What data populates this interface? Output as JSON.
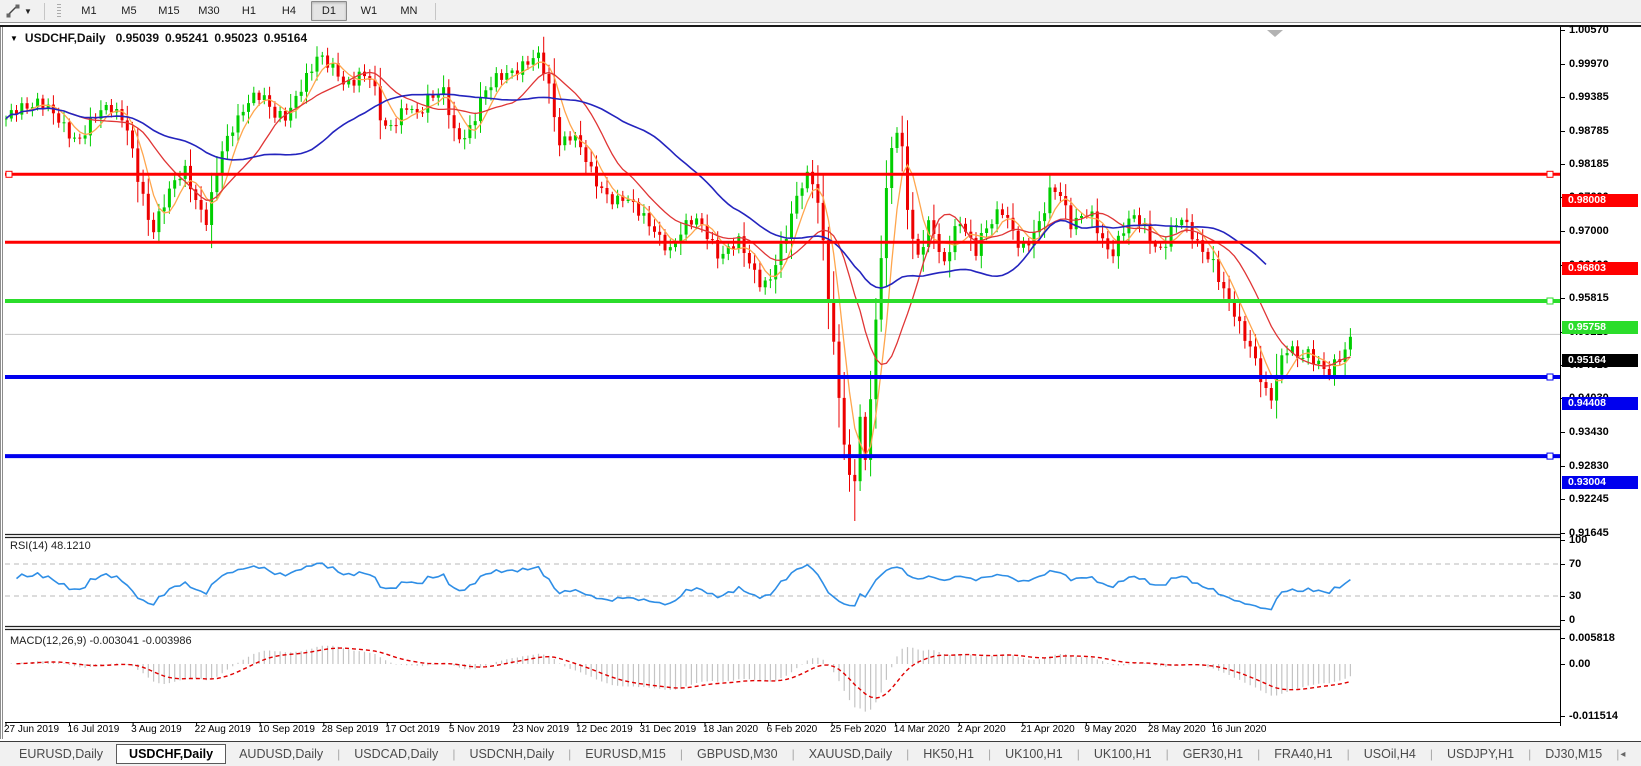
{
  "toolbar": {
    "timeframes": [
      "M1",
      "M5",
      "M15",
      "M30",
      "H1",
      "H4",
      "D1",
      "W1",
      "MN"
    ],
    "active_timeframe": "D1"
  },
  "chart": {
    "title": {
      "symbol": "USDCHF,Daily",
      "open": "0.95039",
      "high": "0.95241",
      "low": "0.95023",
      "close": "0.95164"
    },
    "indicators": {
      "rsi_label": "RSI(14) 48.1210",
      "macd_label": "MACD(12,26,9) -0.003041 -0.003986",
      "rsi_axis": [
        "100",
        "70",
        "30",
        "0"
      ],
      "macd_axis": [
        "0.005818",
        "0.00",
        "-0.011514"
      ]
    },
    "colors": {
      "candle_up": "#00CE00",
      "candle_down": "#ED0000",
      "ma_fast": "#FFA64D",
      "ma_medium": "#E03636",
      "ma_slow": "#2424BE",
      "rsi_line": "#2E8EE6",
      "macd_hist": "#C4C4C4",
      "macd_signal": "#E00000",
      "bid_line": "#C6C6C6",
      "level_red": "#FF0000",
      "level_green": "#2BDD2B",
      "level_blue": "#0000EE"
    }
  },
  "chart_data": {
    "type": "candlestick",
    "symbol": "USDCHF",
    "timeframe": "Daily",
    "ohlc_current": {
      "open": 0.95039,
      "high": 0.95241,
      "low": 0.95023,
      "close": 0.95164
    },
    "current_price": 0.95164,
    "price_axis_ticks": [
      "1.00570",
      "0.99970",
      "0.99385",
      "0.98785",
      "0.98185",
      "0.97600",
      "0.97000",
      "0.96400",
      "0.95815",
      "0.95215",
      "0.94615",
      "0.94030",
      "0.93430",
      "0.92830",
      "0.92245",
      "0.91645"
    ],
    "ylim": [
      0.91645,
      1.0057
    ],
    "horizontal_lines": [
      {
        "price": 0.98008,
        "label": "0.98008",
        "color": "#FF0000",
        "width": 3,
        "handles": [
          "left",
          "right"
        ]
      },
      {
        "price": 0.96803,
        "label": "0.96803",
        "color": "#FF0000",
        "width": 3,
        "handles": []
      },
      {
        "price": 0.95758,
        "label": "0.95758",
        "color": "#2BDD2B",
        "width": 4,
        "handles": [
          "right"
        ]
      },
      {
        "price": 0.94408,
        "label": "0.94408",
        "color": "#0000EE",
        "width": 4,
        "handles": [
          "right"
        ]
      },
      {
        "price": 0.93004,
        "label": "0.93004",
        "color": "#0000EE",
        "width": 4,
        "handles": [
          "right"
        ]
      }
    ],
    "bars": {
      "count": 256,
      "first_x": 6,
      "spacing": 5.272
    },
    "close_keyframes": [
      [
        6,
        0.99
      ],
      [
        40,
        0.9935
      ],
      [
        62,
        0.9886
      ],
      [
        78,
        0.9862
      ],
      [
        95,
        0.99
      ],
      [
        110,
        0.9926
      ],
      [
        125,
        0.9898
      ],
      [
        138,
        0.979
      ],
      [
        152,
        0.97
      ],
      [
        162,
        0.9745
      ],
      [
        175,
        0.9785
      ],
      [
        186,
        0.9808
      ],
      [
        197,
        0.9752
      ],
      [
        207,
        0.9716
      ],
      [
        220,
        0.983
      ],
      [
        233,
        0.989
      ],
      [
        248,
        0.9928
      ],
      [
        262,
        0.994
      ],
      [
        275,
        0.9912
      ],
      [
        288,
        0.9902
      ],
      [
        302,
        0.9955
      ],
      [
        318,
        1.0018
      ],
      [
        330,
        0.9992
      ],
      [
        345,
        0.9958
      ],
      [
        360,
        0.9982
      ],
      [
        372,
        0.9968
      ],
      [
        383,
        0.988
      ],
      [
        393,
        0.9893
      ],
      [
        406,
        0.9922
      ],
      [
        418,
        0.99
      ],
      [
        430,
        0.9945
      ],
      [
        444,
        0.995
      ],
      [
        456,
        0.9856
      ],
      [
        468,
        0.9874
      ],
      [
        482,
        0.9942
      ],
      [
        497,
        0.9968
      ],
      [
        512,
        0.9986
      ],
      [
        527,
        0.9998
      ],
      [
        540,
        1.0008
      ],
      [
        550,
        0.9952
      ],
      [
        560,
        0.9855
      ],
      [
        572,
        0.9868
      ],
      [
        583,
        0.984
      ],
      [
        594,
        0.98
      ],
      [
        605,
        0.9765
      ],
      [
        615,
        0.9745
      ],
      [
        625,
        0.9762
      ],
      [
        636,
        0.9748
      ],
      [
        648,
        0.9712
      ],
      [
        660,
        0.9682
      ],
      [
        670,
        0.9668
      ],
      [
        680,
        0.97
      ],
      [
        690,
        0.9716
      ],
      [
        700,
        0.9712
      ],
      [
        710,
        0.9688
      ],
      [
        720,
        0.9655
      ],
      [
        730,
        0.9668
      ],
      [
        740,
        0.968
      ],
      [
        750,
        0.9645
      ],
      [
        760,
        0.9612
      ],
      [
        768,
        0.96
      ],
      [
        778,
        0.965
      ],
      [
        788,
        0.9706
      ],
      [
        797,
        0.9768
      ],
      [
        806,
        0.9796
      ],
      [
        814,
        0.9784
      ],
      [
        822,
        0.97
      ],
      [
        830,
        0.956
      ],
      [
        838,
        0.943
      ],
      [
        846,
        0.929
      ],
      [
        853,
        0.9225
      ],
      [
        860,
        0.936
      ],
      [
        866,
        0.929
      ],
      [
        873,
        0.947
      ],
      [
        880,
        0.964
      ],
      [
        888,
        0.98
      ],
      [
        895,
        0.9882
      ],
      [
        901,
        0.9862
      ],
      [
        908,
        0.974
      ],
      [
        916,
        0.9652
      ],
      [
        924,
        0.9682
      ],
      [
        931,
        0.972
      ],
      [
        938,
        0.9662
      ],
      [
        945,
        0.964
      ],
      [
        953,
        0.97
      ],
      [
        961,
        0.9722
      ],
      [
        969,
        0.9682
      ],
      [
        976,
        0.966
      ],
      [
        984,
        0.9702
      ],
      [
        992,
        0.9722
      ],
      [
        1001,
        0.9744
      ],
      [
        1011,
        0.9702
      ],
      [
        1021,
        0.9662
      ],
      [
        1031,
        0.9692
      ],
      [
        1041,
        0.9722
      ],
      [
        1052,
        0.9775
      ],
      [
        1062,
        0.9758
      ],
      [
        1072,
        0.9712
      ],
      [
        1082,
        0.9732
      ],
      [
        1092,
        0.9722
      ],
      [
        1102,
        0.9682
      ],
      [
        1112,
        0.9662
      ],
      [
        1122,
        0.97
      ],
      [
        1132,
        0.9722
      ],
      [
        1142,
        0.9714
      ],
      [
        1152,
        0.9682
      ],
      [
        1162,
        0.9666
      ],
      [
        1172,
        0.97
      ],
      [
        1182,
        0.9722
      ],
      [
        1192,
        0.97
      ],
      [
        1202,
        0.9666
      ],
      [
        1212,
        0.9642
      ],
      [
        1222,
        0.96
      ],
      [
        1232,
        0.9572
      ],
      [
        1242,
        0.9522
      ],
      [
        1252,
        0.9482
      ],
      [
        1262,
        0.9432
      ],
      [
        1270,
        0.9398
      ],
      [
        1278,
        0.9462
      ],
      [
        1288,
        0.9492
      ],
      [
        1298,
        0.9472
      ],
      [
        1308,
        0.9486
      ],
      [
        1318,
        0.947
      ],
      [
        1328,
        0.9442
      ],
      [
        1336,
        0.9462
      ],
      [
        1344,
        0.9484
      ],
      [
        1351,
        0.9516
      ]
    ],
    "spike_low": {
      "x": 855,
      "price": 0.9185
    },
    "moving_averages": [
      {
        "name": "fast",
        "period": 5,
        "color": "#FFA64D"
      },
      {
        "name": "medium",
        "period": 13,
        "color": "#E03636"
      },
      {
        "name": "slow",
        "period": 34,
        "color": "#2424BE",
        "end_bars_early": 16
      }
    ],
    "rsi": {
      "period": 14,
      "current": 48.121,
      "levels": [
        70,
        30
      ],
      "scale": [
        0,
        100
      ]
    },
    "macd": {
      "fast": 12,
      "slow": 26,
      "signal": 9,
      "current_macd": -0.003041,
      "current_signal": -0.003986,
      "axis_max": 0.005818,
      "axis_min": -0.011514
    },
    "x_axis_labels": [
      "27 Jun 2019",
      "16 Jul 2019",
      "3 Aug 2019",
      "22 Aug 2019",
      "10 Sep 2019",
      "28 Sep 2019",
      "17 Oct 2019",
      "5 Nov 2019",
      "23 Nov 2019",
      "12 Dec 2019",
      "31 Dec 2019",
      "18 Jan 2020",
      "6 Feb 2020",
      "25 Feb 2020",
      "14 Mar 2020",
      "2 Apr 2020",
      "21 Apr 2020",
      "9 May 2020",
      "28 May 2020",
      "16 Jun 2020"
    ]
  },
  "tabs": {
    "items": [
      "EURUSD,Daily",
      "USDCHF,Daily",
      "AUDUSD,Daily",
      "USDCAD,Daily",
      "USDCNH,Daily",
      "EURUSD,M15",
      "GBPUSD,M30",
      "XAUUSD,Daily",
      "HK50,H1",
      "UK100,H1",
      "UK100,H1",
      "GER30,H1",
      "FRA40,H1",
      "USOil,H4",
      "USDJPY,H1",
      "DJ30,M15"
    ],
    "active_index": 1,
    "scroll_left": "◂",
    "scroll_right": "▸"
  }
}
